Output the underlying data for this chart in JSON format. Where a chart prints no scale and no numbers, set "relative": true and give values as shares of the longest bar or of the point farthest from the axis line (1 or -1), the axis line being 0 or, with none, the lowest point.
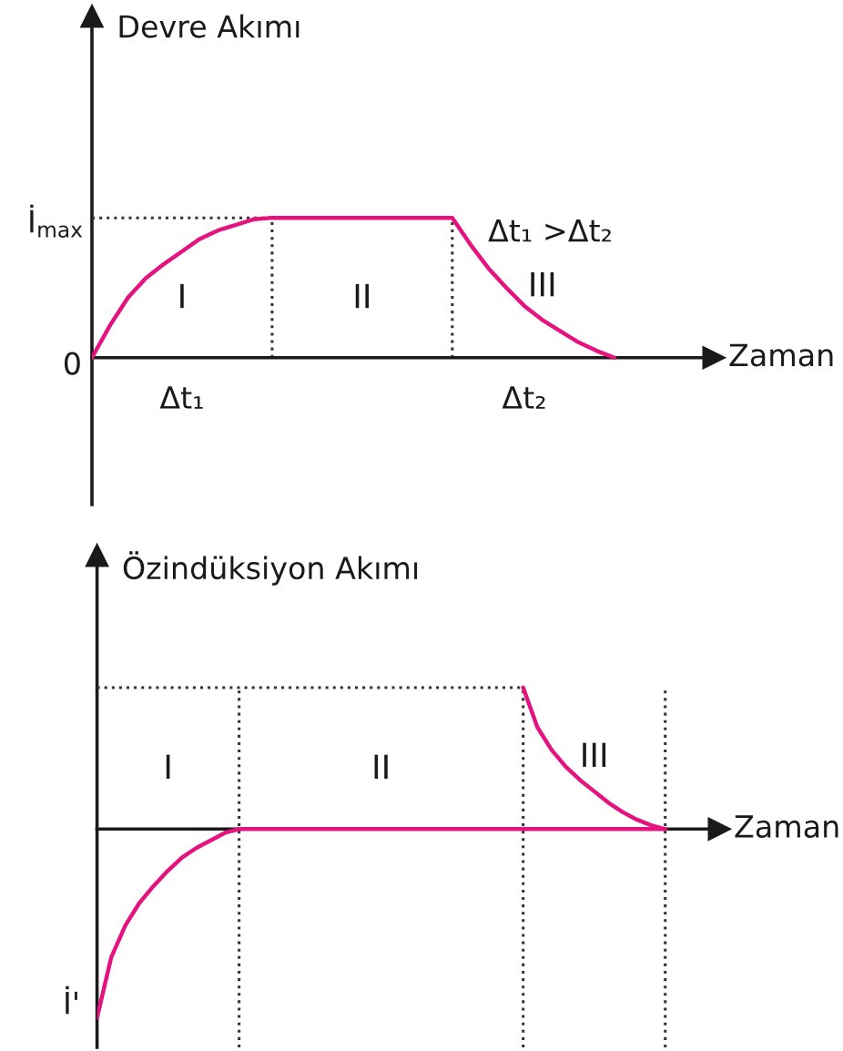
{
  "chart_data": [
    {
      "type": "line",
      "ylabel": "Devre Akımı",
      "xlabel": "Zaman",
      "relative": true,
      "categories": [
        null,
        null,
        null,
        null,
        null,
        "Δt₁",
        null,
        null,
        null,
        null,
        null,
        null,
        null,
        null,
        null,
        null,
        null,
        null,
        null,
        null,
        null,
        null,
        null,
        null,
        "Δt₂",
        null,
        null,
        null,
        null,
        null
      ],
      "series": [
        {
          "color": "#e5137f",
          "values": [
            0,
            0.23,
            0.43,
            0.57,
            0.67,
            0.76,
            0.85,
            0.91,
            0.95,
            0.99,
            1,
            1,
            1,
            1,
            1,
            1,
            1,
            1,
            1,
            1,
            1,
            0.81,
            0.64,
            0.5,
            0.37,
            0.27,
            0.19,
            0.11,
            0.05,
            0
          ]
        },
        {
          "color": "#333333",
          "line_style": "dotted",
          "values": [
            1,
            1,
            1,
            1,
            1,
            1,
            1,
            1,
            1,
            1,
            1,
            null,
            null,
            null,
            null,
            null,
            null,
            null,
            null,
            null,
            null,
            null,
            null,
            null,
            null,
            null,
            null,
            null,
            null,
            null
          ]
        }
      ],
      "annotations": [
        "I",
        "II",
        "III",
        "Δt₁ >Δt₂",
        "İ$_{max}$",
        "0"
      ]
    },
    {
      "type": "line",
      "ylabel": "Özindüksiyon Akımı",
      "xlabel": "Zaman",
      "relative": true,
      "categories": [
        null,
        null,
        null,
        null,
        null,
        null,
        null,
        null,
        null,
        null,
        null,
        null,
        null,
        null,
        null,
        null,
        null,
        null,
        null,
        null,
        null,
        null,
        null,
        null,
        null,
        null,
        null,
        null,
        null,
        null,
        null,
        null,
        null,
        null,
        null,
        null,
        null,
        null,
        null,
        null,
        null
      ],
      "series": [
        {
          "color": "#e5137f",
          "values": [
            -1,
            -0.68,
            -0.51,
            -0.39,
            -0.3,
            -0.22,
            -0.15,
            -0.1,
            -0.06,
            -0.02,
            0,
            0,
            0,
            0,
            0,
            0,
            0,
            0,
            0,
            0,
            0,
            0,
            0,
            0,
            0,
            0,
            0,
            0,
            0,
            0,
            0,
            0,
            0,
            0,
            0,
            0,
            0,
            0,
            0,
            0,
            0
          ]
        },
        {
          "color": "#e5137f",
          "values": [
            null,
            null,
            null,
            null,
            null,
            null,
            null,
            null,
            null,
            null,
            null,
            null,
            null,
            null,
            null,
            null,
            null,
            null,
            null,
            null,
            null,
            null,
            null,
            null,
            null,
            null,
            null,
            null,
            null,
            null,
            0.75,
            0.54,
            0.42,
            0.33,
            0.26,
            0.2,
            0.14,
            0.09,
            0.05,
            0.02,
            0
          ]
        },
        {
          "color": "#333333",
          "line_style": "dotted",
          "values": [
            0.75,
            0.75,
            0.75,
            0.75,
            0.75,
            0.75,
            0.75,
            0.75,
            0.75,
            0.75,
            0.75,
            0.75,
            0.75,
            0.75,
            0.75,
            0.75,
            0.75,
            0.75,
            0.75,
            0.75,
            0.75,
            0.75,
            0.75,
            0.75,
            0.75,
            0.75,
            0.75,
            0.75,
            0.75,
            0.75,
            0.75,
            null,
            null,
            null,
            null,
            null,
            null,
            null,
            null,
            null,
            null
          ]
        }
      ],
      "annotations": [
        "I",
        "II",
        "III",
        "İ'"
      ]
    }
  ]
}
